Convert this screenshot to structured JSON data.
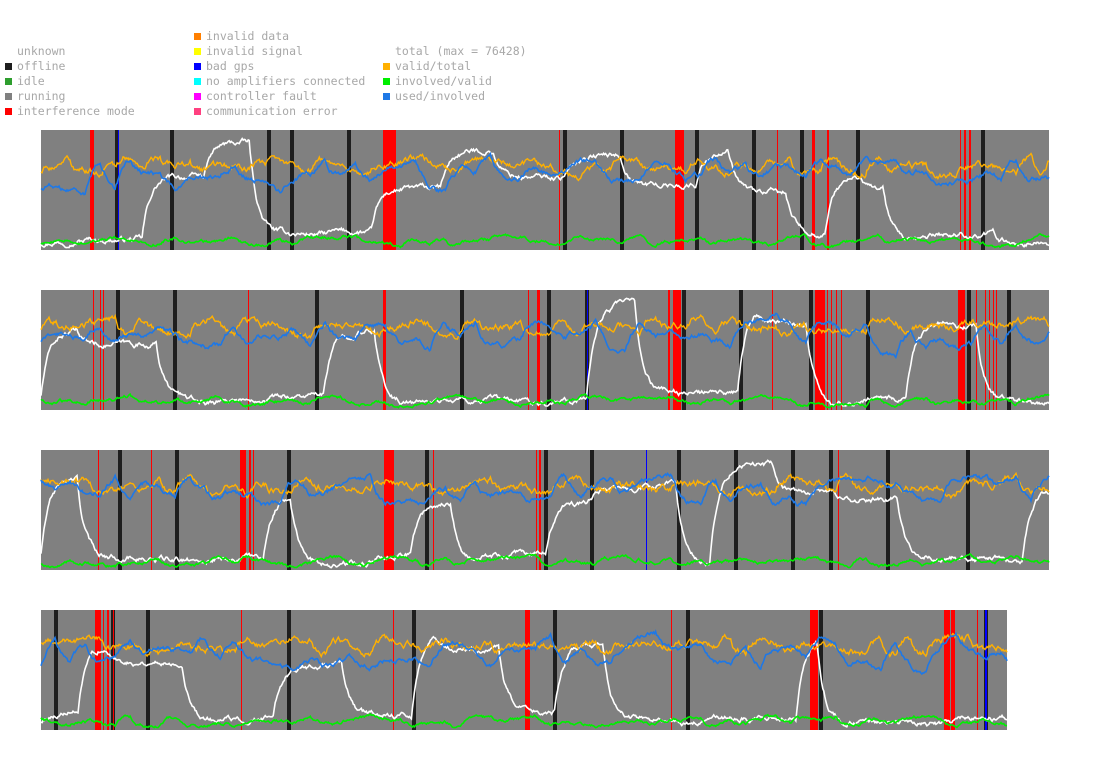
{
  "legend": {
    "status": [
      {
        "label": "unknown",
        "color": "#ffffff"
      },
      {
        "label": "offline",
        "color": "#1e1e1e"
      },
      {
        "label": "idle",
        "color": "#2e9e2e"
      },
      {
        "label": "running",
        "color": "#808080"
      },
      {
        "label": "interference mode",
        "color": "#ff0000"
      }
    ],
    "errors": [
      {
        "label": "invalid data",
        "color": "#ff7f00"
      },
      {
        "label": "invalid signal",
        "color": "#ffff00"
      },
      {
        "label": "bad gps",
        "color": "#0000ff"
      },
      {
        "label": "no amplifiers connected",
        "color": "#00ffff"
      },
      {
        "label": "controller fault",
        "color": "#ff00ff"
      },
      {
        "label": "communication error",
        "color": "#ff4080"
      }
    ],
    "lines": [
      {
        "label": "total (max = 76428)",
        "color": "#ffffff"
      },
      {
        "label": "valid/total",
        "color": "#ffb000"
      },
      {
        "label": "involved/valid",
        "color": "#00ee00"
      },
      {
        "label": "used/involved",
        "color": "#1e78e6"
      }
    ]
  },
  "chart_data": {
    "type": "line",
    "ylim": [
      0,
      1
    ],
    "total_max": 76428,
    "strips": [
      {
        "n": 1008,
        "events": [
          {
            "s": 49,
            "e": 53,
            "type": "interference mode"
          },
          {
            "s": 74,
            "e": 78,
            "type": "offline"
          },
          {
            "s": 77,
            "e": 78,
            "type": "bad gps"
          },
          {
            "s": 129,
            "e": 133,
            "type": "offline"
          },
          {
            "s": 226,
            "e": 230,
            "type": "offline"
          },
          {
            "s": 249,
            "e": 253,
            "type": "offline"
          },
          {
            "s": 306,
            "e": 310,
            "type": "offline"
          },
          {
            "s": 342,
            "e": 355,
            "type": "interference mode"
          },
          {
            "s": 518,
            "e": 519,
            "type": "interference mode"
          },
          {
            "s": 522,
            "e": 526,
            "type": "offline"
          },
          {
            "s": 579,
            "e": 583,
            "type": "offline"
          },
          {
            "s": 634,
            "e": 643,
            "type": "interference mode"
          },
          {
            "s": 654,
            "e": 658,
            "type": "offline"
          },
          {
            "s": 711,
            "e": 715,
            "type": "offline"
          },
          {
            "s": 736,
            "e": 737,
            "type": "interference mode"
          },
          {
            "s": 759,
            "e": 763,
            "type": "offline"
          },
          {
            "s": 771,
            "e": 774,
            "type": "interference mode"
          },
          {
            "s": 786,
            "e": 788,
            "type": "interference mode"
          },
          {
            "s": 815,
            "e": 819,
            "type": "offline"
          },
          {
            "s": 919,
            "e": 920,
            "type": "interference mode"
          },
          {
            "s": 923,
            "e": 925,
            "type": "interference mode"
          },
          {
            "s": 928,
            "e": 930,
            "type": "interference mode"
          },
          {
            "s": 940,
            "e": 944,
            "type": "offline"
          }
        ]
      },
      {
        "n": 1008,
        "events": [
          {
            "s": 52,
            "e": 53,
            "type": "interference mode"
          },
          {
            "s": 59,
            "e": 60,
            "type": "interference mode"
          },
          {
            "s": 62,
            "e": 63,
            "type": "interference mode"
          },
          {
            "s": 75,
            "e": 79,
            "type": "offline"
          },
          {
            "s": 132,
            "e": 136,
            "type": "offline"
          },
          {
            "s": 207,
            "e": 208,
            "type": "interference mode"
          },
          {
            "s": 274,
            "e": 278,
            "type": "offline"
          },
          {
            "s": 342,
            "e": 345,
            "type": "interference mode"
          },
          {
            "s": 419,
            "e": 423,
            "type": "offline"
          },
          {
            "s": 487,
            "e": 488,
            "type": "interference mode"
          },
          {
            "s": 496,
            "e": 499,
            "type": "interference mode"
          },
          {
            "s": 506,
            "e": 510,
            "type": "offline"
          },
          {
            "s": 544,
            "e": 548,
            "type": "offline"
          },
          {
            "s": 546,
            "e": 547,
            "type": "bad gps"
          },
          {
            "s": 627,
            "e": 629,
            "type": "interference mode"
          },
          {
            "s": 632,
            "e": 640,
            "type": "interference mode"
          },
          {
            "s": 641,
            "e": 645,
            "type": "offline"
          },
          {
            "s": 698,
            "e": 702,
            "type": "offline"
          },
          {
            "s": 731,
            "e": 732,
            "type": "interference mode"
          },
          {
            "s": 768,
            "e": 772,
            "type": "offline"
          },
          {
            "s": 774,
            "e": 784,
            "type": "interference mode"
          },
          {
            "s": 786,
            "e": 787,
            "type": "interference mode"
          },
          {
            "s": 790,
            "e": 791,
            "type": "interference mode"
          },
          {
            "s": 795,
            "e": 796,
            "type": "interference mode"
          },
          {
            "s": 800,
            "e": 801,
            "type": "interference mode"
          },
          {
            "s": 825,
            "e": 829,
            "type": "offline"
          },
          {
            "s": 917,
            "e": 924,
            "type": "interference mode"
          },
          {
            "s": 926,
            "e": 930,
            "type": "offline"
          },
          {
            "s": 935,
            "e": 936,
            "type": "interference mode"
          },
          {
            "s": 944,
            "e": 945,
            "type": "interference mode"
          },
          {
            "s": 948,
            "e": 949,
            "type": "interference mode"
          },
          {
            "s": 952,
            "e": 953,
            "type": "interference mode"
          },
          {
            "s": 955,
            "e": 956,
            "type": "interference mode"
          },
          {
            "s": 966,
            "e": 970,
            "type": "offline"
          }
        ]
      },
      {
        "n": 1008,
        "events": [
          {
            "s": 57,
            "e": 58,
            "type": "interference mode"
          },
          {
            "s": 77,
            "e": 81,
            "type": "offline"
          },
          {
            "s": 110,
            "e": 111,
            "type": "interference mode"
          },
          {
            "s": 134,
            "e": 138,
            "type": "offline"
          },
          {
            "s": 199,
            "e": 205,
            "type": "interference mode"
          },
          {
            "s": 208,
            "e": 210,
            "type": "interference mode"
          },
          {
            "s": 212,
            "e": 213,
            "type": "interference mode"
          },
          {
            "s": 246,
            "e": 250,
            "type": "offline"
          },
          {
            "s": 343,
            "e": 353,
            "type": "interference mode"
          },
          {
            "s": 384,
            "e": 388,
            "type": "offline"
          },
          {
            "s": 392,
            "e": 393,
            "type": "interference mode"
          },
          {
            "s": 495,
            "e": 496,
            "type": "interference mode"
          },
          {
            "s": 498,
            "e": 500,
            "type": "interference mode"
          },
          {
            "s": 503,
            "e": 507,
            "type": "offline"
          },
          {
            "s": 549,
            "e": 553,
            "type": "offline"
          },
          {
            "s": 605,
            "e": 606,
            "type": "bad gps"
          },
          {
            "s": 636,
            "e": 640,
            "type": "offline"
          },
          {
            "s": 693,
            "e": 697,
            "type": "offline"
          },
          {
            "s": 750,
            "e": 754,
            "type": "offline"
          },
          {
            "s": 788,
            "e": 792,
            "type": "offline"
          },
          {
            "s": 797,
            "e": 798,
            "type": "interference mode"
          },
          {
            "s": 845,
            "e": 849,
            "type": "offline"
          },
          {
            "s": 925,
            "e": 929,
            "type": "offline"
          }
        ]
      },
      {
        "n": 966,
        "events": [
          {
            "s": 13,
            "e": 17,
            "type": "offline"
          },
          {
            "s": 54,
            "e": 60,
            "type": "interference mode"
          },
          {
            "s": 62,
            "e": 63,
            "type": "interference mode"
          },
          {
            "s": 66,
            "e": 68,
            "type": "interference mode"
          },
          {
            "s": 70,
            "e": 74,
            "type": "offline"
          },
          {
            "s": 72,
            "e": 73,
            "type": "interference mode"
          },
          {
            "s": 105,
            "e": 109,
            "type": "offline"
          },
          {
            "s": 200,
            "e": 201,
            "type": "interference mode"
          },
          {
            "s": 246,
            "e": 250,
            "type": "offline"
          },
          {
            "s": 352,
            "e": 353,
            "type": "interference mode"
          },
          {
            "s": 371,
            "e": 375,
            "type": "offline"
          },
          {
            "s": 484,
            "e": 489,
            "type": "interference mode"
          },
          {
            "s": 512,
            "e": 516,
            "type": "offline"
          },
          {
            "s": 630,
            "e": 631,
            "type": "interference mode"
          },
          {
            "s": 646,
            "e": 647,
            "type": "interference mode"
          },
          {
            "s": 645,
            "e": 649,
            "type": "offline"
          },
          {
            "s": 769,
            "e": 777,
            "type": "interference mode"
          },
          {
            "s": 778,
            "e": 782,
            "type": "offline"
          },
          {
            "s": 903,
            "e": 909,
            "type": "interference mode"
          },
          {
            "s": 910,
            "e": 914,
            "type": "interference mode"
          },
          {
            "s": 936,
            "e": 937,
            "type": "interference mode"
          },
          {
            "s": 943,
            "e": 947,
            "type": "offline"
          },
          {
            "s": 944,
            "e": 946,
            "type": "bad gps"
          }
        ]
      }
    ]
  }
}
